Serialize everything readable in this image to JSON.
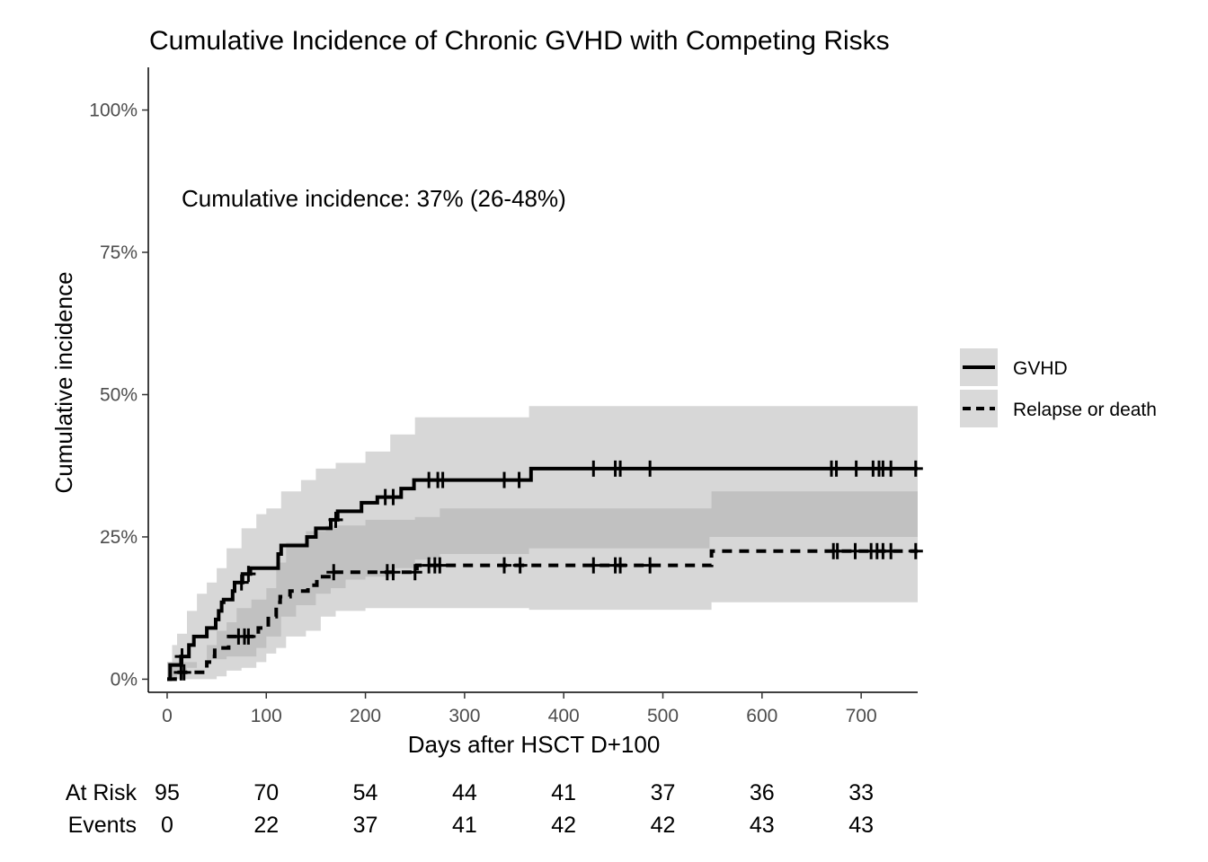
{
  "chart_data": {
    "type": "line",
    "title": "Cumulative Incidence of Chronic GVHD with Competing Risks",
    "xlabel": "Days after HSCT D+100",
    "ylabel": "Cumulative incidence",
    "xlim": [
      -19,
      757
    ],
    "ylim": [
      -2.3,
      107.5
    ],
    "x_ticks": [
      0,
      100,
      200,
      300,
      400,
      500,
      600,
      700
    ],
    "y_ticks": [
      0,
      25,
      50,
      75,
      100
    ],
    "y_tick_labels": [
      "0%",
      "25%",
      "50%",
      "75%",
      "100%"
    ],
    "grid": false,
    "legend_position": "right",
    "annotation": "Cumulative incidence: 37% (26-48%)",
    "series": [
      {
        "name": "GVHD",
        "line_style": "solid",
        "color": "#000000",
        "steps": [
          [
            0,
            0
          ],
          [
            3,
            1
          ],
          [
            3,
            2.5
          ],
          [
            8,
            2.5
          ],
          [
            14,
            4
          ],
          [
            20,
            4
          ],
          [
            22,
            6
          ],
          [
            27,
            7.5
          ],
          [
            37,
            7.5
          ],
          [
            40,
            9
          ],
          [
            47,
            9
          ],
          [
            49,
            10.5
          ],
          [
            52,
            12
          ],
          [
            55,
            13.5
          ],
          [
            57,
            14
          ],
          [
            64,
            14
          ],
          [
            66,
            15.5
          ],
          [
            68,
            17
          ],
          [
            74,
            17
          ],
          [
            76,
            18.5
          ],
          [
            82,
            18.5
          ],
          [
            84,
            19.5
          ],
          [
            110,
            19.5
          ],
          [
            112,
            22
          ],
          [
            115,
            23.5
          ],
          [
            139,
            23.5
          ],
          [
            141,
            25
          ],
          [
            148,
            25
          ],
          [
            150,
            26.5
          ],
          [
            163,
            26.5
          ],
          [
            165,
            28
          ],
          [
            170,
            28
          ],
          [
            172,
            29.5
          ],
          [
            194,
            29.5
          ],
          [
            196,
            31
          ],
          [
            210,
            31
          ],
          [
            212,
            32
          ],
          [
            234,
            32
          ],
          [
            236,
            33.5
          ],
          [
            247,
            33.5
          ],
          [
            249,
            35
          ],
          [
            365,
            35
          ],
          [
            367,
            37
          ],
          [
            757,
            37
          ]
        ],
        "censor_x": [
          15,
          75,
          82,
          170,
          220,
          228,
          264,
          273,
          278,
          340,
          355,
          430,
          452,
          457,
          487,
          670,
          675,
          695,
          712,
          718,
          722,
          730,
          755
        ],
        "ci_lower": [
          [
            0,
            0
          ],
          [
            5,
            0
          ],
          [
            10,
            1
          ],
          [
            20,
            2
          ],
          [
            30,
            3
          ],
          [
            45,
            3.5
          ],
          [
            60,
            4
          ],
          [
            75,
            4
          ],
          [
            90,
            5.5
          ],
          [
            100,
            7.5
          ],
          [
            115,
            11
          ],
          [
            130,
            13
          ],
          [
            150,
            15
          ],
          [
            165,
            16
          ],
          [
            180,
            17.5
          ],
          [
            200,
            18
          ],
          [
            230,
            19.5
          ],
          [
            250,
            21
          ],
          [
            275,
            22
          ],
          [
            365,
            23
          ],
          [
            547,
            25
          ],
          [
            757,
            26
          ]
        ],
        "ci_upper": [
          [
            0,
            3
          ],
          [
            5,
            6
          ],
          [
            10,
            8
          ],
          [
            20,
            12
          ],
          [
            30,
            15
          ],
          [
            40,
            17
          ],
          [
            50,
            19.5
          ],
          [
            60,
            23
          ],
          [
            75,
            26.5
          ],
          [
            90,
            29
          ],
          [
            100,
            30
          ],
          [
            115,
            33
          ],
          [
            135,
            35
          ],
          [
            150,
            37
          ],
          [
            170,
            38
          ],
          [
            200,
            40
          ],
          [
            225,
            43
          ],
          [
            250,
            46
          ],
          [
            365,
            48
          ],
          [
            757,
            48
          ]
        ]
      },
      {
        "name": "Relapse or death",
        "line_style": "dashed",
        "color": "#000000",
        "steps": [
          [
            0,
            0
          ],
          [
            5,
            0
          ],
          [
            8,
            1.2
          ],
          [
            37,
            1.2
          ],
          [
            40,
            3
          ],
          [
            45,
            4
          ],
          [
            48,
            5.5
          ],
          [
            60,
            5.5
          ],
          [
            62,
            7.5
          ],
          [
            90,
            7.5
          ],
          [
            92,
            9
          ],
          [
            100,
            9
          ],
          [
            102,
            11
          ],
          [
            107,
            11
          ],
          [
            110,
            13.5
          ],
          [
            114,
            14.5
          ],
          [
            122,
            14.5
          ],
          [
            124,
            15.5
          ],
          [
            138,
            15.5
          ],
          [
            142,
            16.5
          ],
          [
            149,
            16.5
          ],
          [
            151,
            18
          ],
          [
            160,
            18
          ],
          [
            163,
            18.8
          ],
          [
            250,
            18.8
          ],
          [
            252,
            20
          ],
          [
            547,
            20
          ],
          [
            549,
            22.5
          ],
          [
            757,
            22.5
          ]
        ],
        "censor_x": [
          14,
          17,
          72,
          78,
          82,
          168,
          222,
          228,
          250,
          264,
          270,
          275,
          340,
          356,
          430,
          452,
          457,
          487,
          672,
          676,
          694,
          710,
          716,
          722,
          730,
          755
        ],
        "ci_lower": [
          [
            0,
            0
          ],
          [
            40,
            0
          ],
          [
            50,
            0.5
          ],
          [
            60,
            1.5
          ],
          [
            75,
            2
          ],
          [
            90,
            3
          ],
          [
            100,
            4.5
          ],
          [
            110,
            5.5
          ],
          [
            120,
            7.5
          ],
          [
            140,
            8.5
          ],
          [
            155,
            11
          ],
          [
            170,
            12
          ],
          [
            200,
            12.5
          ],
          [
            275,
            12.5
          ],
          [
            365,
            12.2
          ],
          [
            547,
            12.2
          ],
          [
            549,
            13.5
          ],
          [
            757,
            13.5
          ]
        ],
        "ci_upper": [
          [
            0,
            3
          ],
          [
            20,
            3
          ],
          [
            40,
            6
          ],
          [
            50,
            8.5
          ],
          [
            60,
            10
          ],
          [
            70,
            12.5
          ],
          [
            85,
            14
          ],
          [
            100,
            16
          ],
          [
            110,
            20.5
          ],
          [
            120,
            24
          ],
          [
            140,
            26
          ],
          [
            160,
            27
          ],
          [
            200,
            28
          ],
          [
            250,
            28.5
          ],
          [
            275,
            30
          ],
          [
            547,
            30
          ],
          [
            549,
            33
          ],
          [
            757,
            33
          ]
        ]
      }
    ],
    "risk_table": {
      "at_risk_label": "At Risk",
      "events_label": "Events",
      "times": [
        0,
        100,
        200,
        300,
        400,
        500,
        600,
        700
      ],
      "at_risk": [
        "95",
        "70",
        "54",
        "44",
        "41",
        "37",
        "36",
        "33"
      ],
      "events": [
        "0",
        "22",
        "37",
        "41",
        "42",
        "42",
        "43",
        "43"
      ]
    }
  }
}
